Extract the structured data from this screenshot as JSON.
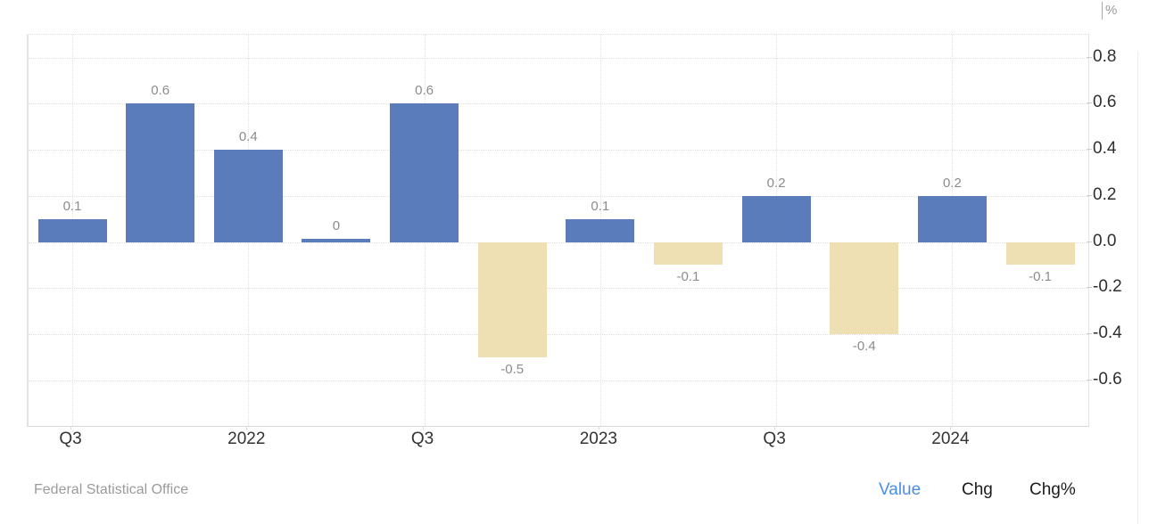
{
  "chart": {
    "unit": "%",
    "source": "Federal Statistical Office",
    "links": {
      "value": "Value",
      "chg": "Chg",
      "chgpct": "Chg%"
    },
    "y_axis_labels": [
      "0.8",
      "0.6",
      "0.4",
      "0.2",
      "0.0",
      "-0.2",
      "-0.4",
      "-0.6"
    ],
    "x_axis_labels": [
      "Q3",
      "2022",
      "Q3",
      "2023",
      "Q3",
      "2024"
    ]
  },
  "chart_data": {
    "type": "bar",
    "title": "",
    "xlabel": "",
    "ylabel": "%",
    "x_tick_labels": [
      "Q3",
      "2022",
      "Q3",
      "2023",
      "Q3",
      "2024"
    ],
    "values": [
      0.1,
      0.6,
      0.4,
      0,
      0.6,
      -0.5,
      0.1,
      -0.1,
      0.2,
      -0.4,
      0.2,
      -0.1
    ],
    "bar_labels": [
      "0.1",
      "0.6",
      "0.4",
      "0",
      "0.6",
      "-0.5",
      "0.1",
      "-0.1",
      "0.2",
      "-0.4",
      "0.2",
      "-0.1"
    ],
    "ylim": [
      -0.8,
      0.9
    ],
    "y_tick_step": 0.2,
    "grid": true,
    "legend": false,
    "colors": {
      "positive": "#5a7cba",
      "negative": "#eee0b2"
    },
    "source": "Federal Statistical Office"
  }
}
